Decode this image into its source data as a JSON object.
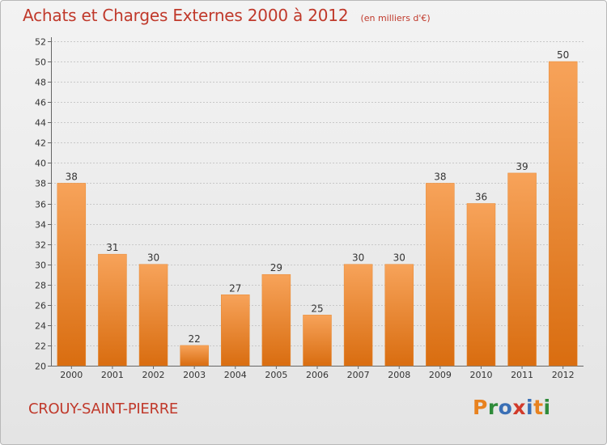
{
  "title": "Achats et Charges Externes 2000 à 2012",
  "unit": "(en milliers d'€)",
  "commune": "CROUY-SAINT-PIERRE",
  "logo": {
    "letters": [
      "P",
      "r",
      "o",
      "x",
      "i",
      "t",
      "i"
    ],
    "colors": [
      "#e8821f",
      "#2e8b3a",
      "#3a6fb5",
      "#d13a2a",
      "#3a6fb5",
      "#e8821f",
      "#2e8b3a"
    ]
  },
  "colors": {
    "bar_top": "#f7a35a",
    "bar_bottom": "#d96d10",
    "title": "#c0392b"
  },
  "chart_data": {
    "type": "bar",
    "title": "Achats et Charges Externes 2000 à 2012",
    "categories": [
      "2000",
      "2001",
      "2002",
      "2003",
      "2004",
      "2005",
      "2006",
      "2007",
      "2008",
      "2009",
      "2010",
      "2011",
      "2012"
    ],
    "values": [
      38,
      31,
      30,
      22,
      27,
      29,
      25,
      30,
      30,
      38,
      36,
      39,
      50
    ],
    "ylim": [
      20,
      52
    ],
    "yticks": [
      20,
      22,
      24,
      26,
      28,
      30,
      32,
      34,
      36,
      38,
      40,
      42,
      44,
      46,
      48,
      50,
      52
    ],
    "grid": true
  }
}
